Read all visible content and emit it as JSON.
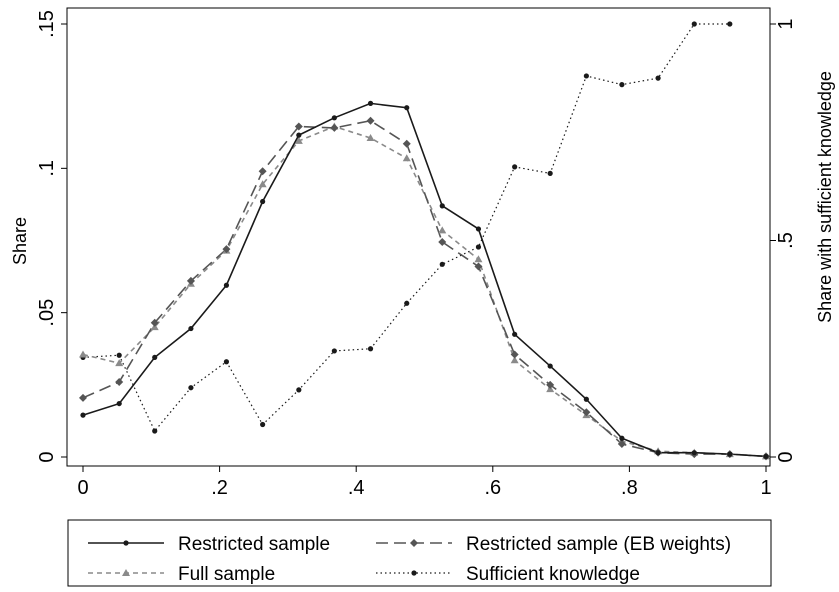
{
  "chart_data": {
    "type": "line",
    "title": "",
    "xlabel": "",
    "ylabel": "Share",
    "y2label": "Share with sufficient knowledge",
    "xlim": [
      0,
      1
    ],
    "ylim": [
      0,
      0.15
    ],
    "y2lim": [
      0,
      1
    ],
    "xticks": [
      0,
      0.2,
      0.4,
      0.6,
      0.8,
      1
    ],
    "xtick_labels": [
      "0",
      ".2",
      ".4",
      ".6",
      ".8",
      "1"
    ],
    "yticks": [
      0,
      0.05,
      0.1,
      0.15
    ],
    "ytick_labels": [
      "0",
      ".05",
      ".1",
      ".15"
    ],
    "y2ticks": [
      0,
      0.5,
      1
    ],
    "y2tick_labels": [
      "0",
      ".5",
      "1"
    ],
    "grid": false,
    "legend_position": "bottom",
    "series": [
      {
        "name": "Restricted sample",
        "axis": "left",
        "color": "#1a1a1a",
        "dash": "solid",
        "marker": "circle",
        "x": [
          0,
          0.053,
          0.105,
          0.158,
          0.21,
          0.263,
          0.316,
          0.368,
          0.421,
          0.474,
          0.526,
          0.579,
          0.632,
          0.684,
          0.737,
          0.789,
          0.842,
          0.895,
          0.947,
          1.0
        ],
        "values": [
          0.0145,
          0.0185,
          0.0345,
          0.0445,
          0.0595,
          0.0885,
          0.1115,
          0.1175,
          0.1225,
          0.121,
          0.087,
          0.079,
          0.0425,
          0.0315,
          0.02,
          0.0065,
          0.0015,
          0.0015,
          0.001,
          0.0002
        ]
      },
      {
        "name": "Restricted sample (EB weights)",
        "axis": "left",
        "color": "#555555",
        "dash": "longdash",
        "marker": "diamond",
        "x": [
          0,
          0.053,
          0.105,
          0.158,
          0.21,
          0.263,
          0.316,
          0.368,
          0.421,
          0.474,
          0.526,
          0.579,
          0.632,
          0.684,
          0.737,
          0.789,
          0.842,
          0.895,
          0.947,
          1.0
        ],
        "values": [
          0.0205,
          0.026,
          0.0465,
          0.061,
          0.072,
          0.099,
          0.1145,
          0.114,
          0.1165,
          0.1085,
          0.0745,
          0.066,
          0.0355,
          0.025,
          0.0155,
          0.0045,
          0.0015,
          0.001,
          0.001,
          0.0002
        ]
      },
      {
        "name": "Full sample",
        "axis": "left",
        "color": "#8a8a8a",
        "dash": "shortdash",
        "marker": "triangle",
        "x": [
          0,
          0.053,
          0.105,
          0.158,
          0.21,
          0.263,
          0.316,
          0.368,
          0.421,
          0.474,
          0.526,
          0.579,
          0.632,
          0.684,
          0.737,
          0.789,
          0.842,
          0.895,
          0.947,
          1.0
        ],
        "values": [
          0.0355,
          0.0325,
          0.045,
          0.06,
          0.0715,
          0.0945,
          0.1095,
          0.1145,
          0.1105,
          0.1035,
          0.0785,
          0.0685,
          0.0335,
          0.0235,
          0.0145,
          0.0055,
          0.002,
          0.0015,
          0.001,
          0.0002
        ]
      },
      {
        "name": "Sufficient knowledge",
        "axis": "right",
        "color": "#1a1a1a",
        "dash": "dotted",
        "marker": "circle",
        "x": [
          0,
          0.053,
          0.105,
          0.158,
          0.21,
          0.263,
          0.316,
          0.368,
          0.421,
          0.474,
          0.526,
          0.579,
          0.632,
          0.684,
          0.737,
          0.789,
          0.842,
          0.895,
          0.947
        ],
        "values": [
          0.23,
          0.235,
          0.06,
          0.16,
          0.22,
          0.075,
          0.155,
          0.245,
          0.25,
          0.355,
          0.445,
          0.485,
          0.67,
          0.655,
          0.88,
          0.86,
          0.875,
          1.0,
          1.0
        ]
      }
    ]
  }
}
